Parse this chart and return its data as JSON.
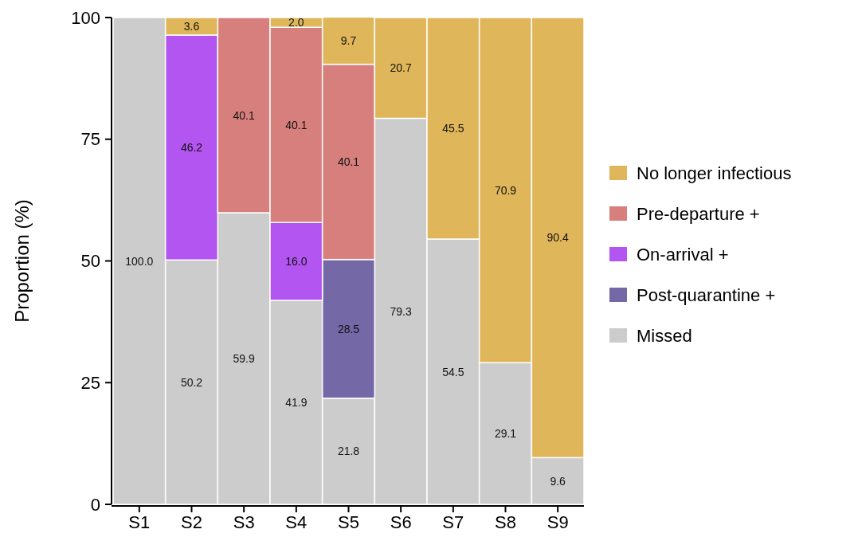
{
  "chart_data": {
    "type": "bar",
    "stacked": true,
    "ylabel": "Proportion (%)",
    "categories": [
      "S1",
      "S2",
      "S3",
      "S4",
      "S5",
      "S6",
      "S7",
      "S8",
      "S9"
    ],
    "ylim": [
      0,
      100
    ],
    "yticks": [
      0,
      25,
      50,
      75,
      100
    ],
    "legend": "right",
    "series": [
      {
        "name": "Missed",
        "color": "#cccccc",
        "values": [
          100.0,
          50.2,
          59.9,
          41.9,
          21.8,
          79.3,
          54.5,
          29.1,
          9.6
        ],
        "value_labels": [
          "100.0",
          "50.2",
          "59.9",
          "41.9",
          "21.8",
          "79.3",
          "54.5",
          "29.1",
          "9.6"
        ]
      },
      {
        "name": "Post-quarantine +",
        "color": "#7468a6",
        "values": [
          null,
          null,
          null,
          null,
          28.5,
          null,
          null,
          null,
          null
        ],
        "value_labels": [
          null,
          null,
          null,
          null,
          "28.5",
          null,
          null,
          null,
          null
        ]
      },
      {
        "name": "On-arrival +",
        "color": "#b355f0",
        "values": [
          null,
          46.2,
          null,
          16.0,
          null,
          null,
          null,
          null,
          null
        ],
        "value_labels": [
          null,
          "46.2",
          null,
          "16.0",
          null,
          null,
          null,
          null,
          null
        ]
      },
      {
        "name": "Pre-departure +",
        "color": "#d77f7c",
        "values": [
          null,
          null,
          40.1,
          40.1,
          40.1,
          null,
          null,
          null,
          null
        ],
        "value_labels": [
          null,
          null,
          "40.1",
          "40.1",
          "40.1",
          null,
          null,
          null,
          null
        ]
      },
      {
        "name": "No longer infectious",
        "color": "#e0b65a",
        "values": [
          null,
          3.6,
          null,
          2.0,
          9.7,
          20.7,
          45.5,
          70.9,
          90.4
        ],
        "value_labels": [
          null,
          "3.6",
          null,
          "2.0",
          "9.7",
          "20.7",
          "45.5",
          "70.9",
          "90.4"
        ]
      }
    ]
  }
}
